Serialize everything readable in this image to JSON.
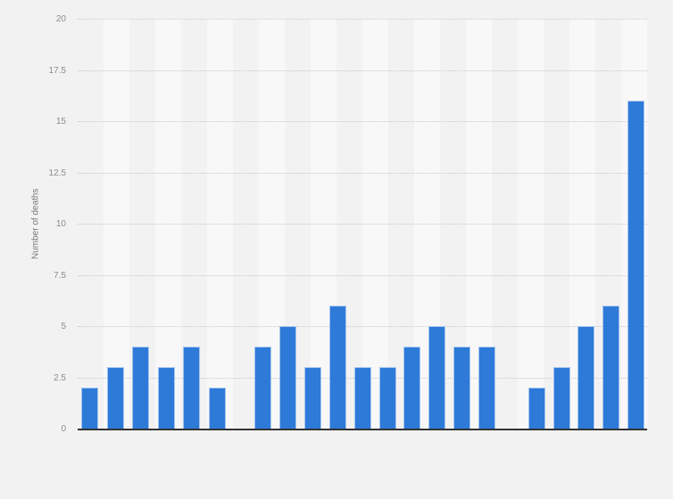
{
  "chart_data": {
    "type": "bar",
    "ylabel": "Number of deaths",
    "xlabel": "",
    "ylim": [
      0,
      20
    ],
    "yticks": [
      0,
      2.5,
      5,
      7.5,
      10,
      12.5,
      15,
      17.5,
      20
    ],
    "grid": "horizontal-dotted",
    "legend": "none",
    "x_axis_labels_visible": false,
    "bar_color": "#2e7ad9",
    "bar_border_color": "#a3c4ee",
    "background_color": "#f2f2f2",
    "column_stripe_color": "#f8f8f8",
    "baseline_color": "#333333",
    "groups": [
      [
        2,
        3,
        4,
        3,
        4,
        2
      ],
      [
        4,
        5,
        3,
        6,
        3,
        3,
        4,
        5,
        4,
        4
      ],
      [
        2,
        3,
        5,
        6,
        16
      ]
    ],
    "values": [
      2,
      3,
      4,
      3,
      4,
      2,
      4,
      5,
      3,
      6,
      3,
      3,
      4,
      5,
      4,
      4,
      2,
      3,
      5,
      6,
      16
    ]
  }
}
